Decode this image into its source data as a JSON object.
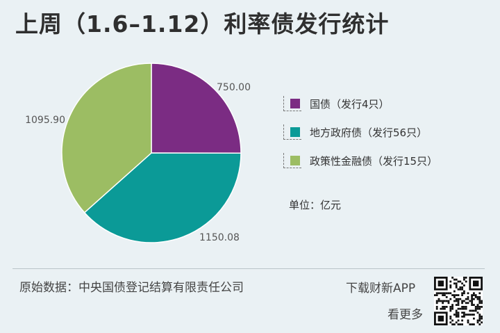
{
  "title": "上周（1.6–1.12）利率债发行统计",
  "chart_data": {
    "type": "pie",
    "title": "上周（1.6–1.12）利率债发行统计",
    "unit": "单位：亿元",
    "slices": [
      {
        "label": "国债（发行4只）",
        "value": 750.0,
        "value_label": "750.00",
        "color": "#7b2c83"
      },
      {
        "label": "地方政府债（发行56只）",
        "value": 1150.08,
        "value_label": "1150.08",
        "color": "#0b9a97"
      },
      {
        "label": "政策性金融债（发行15只）",
        "value": 1095.9,
        "value_label": "1095.90",
        "color": "#9cbd63"
      }
    ],
    "legend_position": "right"
  },
  "footer": {
    "source": "原始数据：中央国债登记结算有限责任公司",
    "app_line1": "下载财新APP",
    "app_line2": "看更多"
  }
}
